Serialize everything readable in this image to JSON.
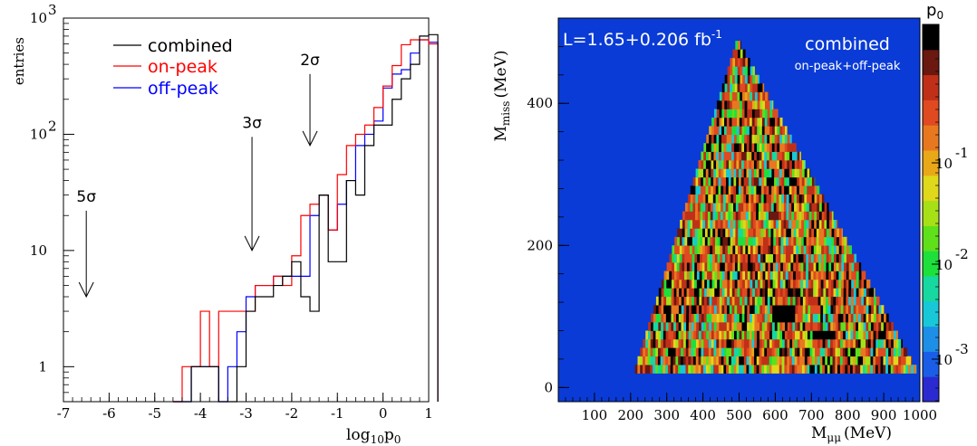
{
  "chart_data": [
    {
      "type": "histogram",
      "xlabel": "log10p0",
      "xlabel_main": "log",
      "xlabel_sub": "10",
      "xlabel_tail": "p",
      "xlabel_tail_sub": "0",
      "ylabel": "entries",
      "xlim": [
        -7,
        1
      ],
      "ylim": [
        0.5,
        1000
      ],
      "log_y": true,
      "x_ticks": [
        "-7",
        "-6",
        "-5",
        "-4",
        "-3",
        "-2",
        "-1",
        "0",
        "1"
      ],
      "y_ticks": [
        {
          "value": 1,
          "label": "1",
          "exp": ""
        },
        {
          "value": 10,
          "label": "10",
          "exp": ""
        },
        {
          "value": 100,
          "label": "10",
          "exp": "2"
        },
        {
          "value": 1000,
          "label": "10",
          "exp": "3"
        }
      ],
      "bin_edges_start": -4.6,
      "bin_width": 0.2,
      "series": [
        {
          "name": "combined",
          "color": "#000000",
          "values": [
            0,
            0,
            1,
            1,
            1,
            0,
            0,
            1,
            3,
            4,
            4,
            5,
            6,
            8,
            4,
            3,
            30,
            8,
            8,
            40,
            30,
            80,
            120,
            120,
            200,
            300,
            400,
            700,
            720
          ]
        },
        {
          "name": "on-peak",
          "color": "#ff0000",
          "values": [
            0,
            1,
            1,
            3,
            1,
            3,
            3,
            3,
            3,
            5,
            5,
            6,
            5,
            9,
            20,
            25,
            30,
            15,
            45,
            80,
            100,
            120,
            170,
            260,
            390,
            590,
            650,
            650,
            600
          ]
        },
        {
          "name": "off-peak",
          "color": "#0000ff",
          "values": [
            0,
            0,
            1,
            1,
            1,
            0,
            1,
            2,
            4,
            5,
            5,
            6,
            6,
            6,
            6,
            20,
            30,
            15,
            25,
            40,
            80,
            100,
            130,
            250,
            330,
            360,
            500,
            650,
            620
          ]
        }
      ],
      "annotations": [
        {
          "label": "5σ",
          "x": -6.5,
          "y_top": 22,
          "y_bottom": 4
        },
        {
          "label": "3σ",
          "x": -2.87,
          "y_top": 95,
          "y_bottom": 10
        },
        {
          "label": "2σ",
          "x": -1.6,
          "y_top": 330,
          "y_bottom": 80
        }
      ]
    },
    {
      "type": "heatmap",
      "xlabel_main": "M",
      "xlabel_sub": "μμ",
      "xlabel_tail": "(MeV)",
      "ylabel_main": "M",
      "ylabel_sub": "miss",
      "ylabel_tail": "(MeV)",
      "xlim": [
        0,
        1000
      ],
      "ylim": [
        -20,
        520
      ],
      "x_ticks": [
        "100",
        "200",
        "300",
        "400",
        "500",
        "600",
        "700",
        "800",
        "900",
        "1000"
      ],
      "y_ticks": [
        "0",
        "200",
        "400"
      ],
      "luminosity_prefix": "L=1.65+0.206 fb",
      "luminosity_exp": "-1",
      "title": "combined",
      "subtitle": "on-peak+off-peak",
      "colorbar_title": "p",
      "colorbar_title_sub": "0",
      "colorbar_ticks": [
        {
          "label": "10",
          "exp": "-1"
        },
        {
          "label": "10",
          "exp": "-2"
        },
        {
          "label": "10",
          "exp": "-3"
        }
      ],
      "region": {
        "x_min": 212,
        "x_max": 990,
        "apex_x": 495,
        "y_min": 20,
        "y_max": 485
      },
      "background_color": "#0a3bd6",
      "colormap": [
        "#2a2ad0",
        "#1a5ee8",
        "#1e8fe6",
        "#18c8d8",
        "#16d8a0",
        "#1ee03c",
        "#5fe01a",
        "#a8e018",
        "#e0d81a",
        "#e8a818",
        "#e87820",
        "#e04a20",
        "#c03018",
        "#6a1810",
        "#000000"
      ]
    }
  ],
  "legend": {
    "combined": "combined",
    "on_peak": "on-peak",
    "off_peak": "off-peak"
  }
}
